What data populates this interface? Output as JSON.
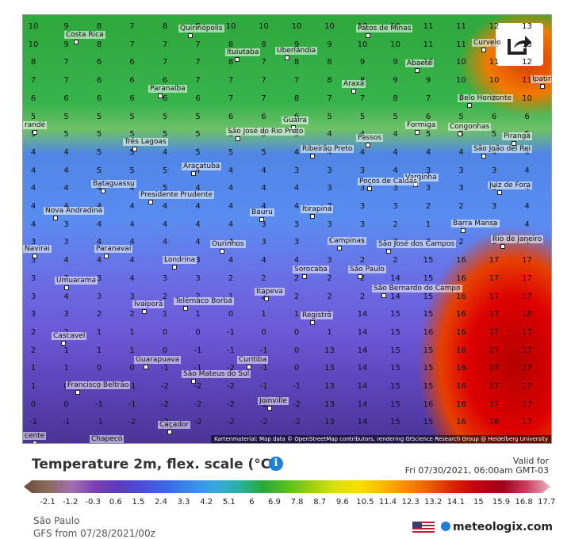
{
  "map": {
    "attribution": "Kartenmaterial: Map data © OpenStreetMap contributors, rendering GIScience Research Group @ Heidelberg University",
    "cities": [
      {
        "name": "Costa Rica"
      },
      {
        "name": "Quirinópolis"
      },
      {
        "name": "Patos de Minas"
      },
      {
        "name": "Curvelo"
      },
      {
        "name": "Ituiutaba"
      },
      {
        "name": "Uberlândia"
      },
      {
        "name": "Abaeté"
      },
      {
        "name": "Ipatinga"
      },
      {
        "name": "Paranaíba"
      },
      {
        "name": "Araxá"
      },
      {
        "name": "Belo Horizonte"
      },
      {
        "name": "Guaíra"
      },
      {
        "name": "Formiga"
      },
      {
        "name": "Congonhas"
      },
      {
        "name": "Três Lagoas"
      },
      {
        "name": "São José do Rio Preto"
      },
      {
        "name": "Ribeirão Preto"
      },
      {
        "name": "Passos"
      },
      {
        "name": "São João del Rei"
      },
      {
        "name": "Piranga"
      },
      {
        "name": "Araçatuba"
      },
      {
        "name": "Varginha"
      },
      {
        "name": "Poços de Caldas"
      },
      {
        "name": "Juiz de Fora"
      },
      {
        "name": "Bataguassu"
      },
      {
        "name": "Presidente Prudente"
      },
      {
        "name": "Bauru"
      },
      {
        "name": "Itirapina"
      },
      {
        "name": "Nova Andradina"
      },
      {
        "name": "Barra Mansa"
      },
      {
        "name": "Campinas"
      },
      {
        "name": "Rio de Janeiro"
      },
      {
        "name": "Navirai"
      },
      {
        "name": "Paranavaí"
      },
      {
        "name": "Ourinhos"
      },
      {
        "name": "São José dos Campos"
      },
      {
        "name": "Londrina"
      },
      {
        "name": "Sorocaba"
      },
      {
        "name": "São Paulo"
      },
      {
        "name": "Umuarama"
      },
      {
        "name": "Itapeva"
      },
      {
        "name": "São Bernardo do Campo"
      },
      {
        "name": "Telêmaco Borba"
      },
      {
        "name": "Ivaiporã"
      },
      {
        "name": "Registro"
      },
      {
        "name": "Cascavel"
      },
      {
        "name": "Guarapuava"
      },
      {
        "name": "Curitiba"
      },
      {
        "name": "São Mateus do Sul"
      },
      {
        "name": "Francisco Beltrão"
      },
      {
        "name": "Joinville"
      },
      {
        "name": "Caçador"
      },
      {
        "name": "Chapecó"
      },
      {
        "name": "cente"
      },
      {
        "name": "randé"
      }
    ],
    "grid_rows": [
      "10 9 8 7 8 8 10 10 10 10 10 10 11 11 12 13",
      "10 9 8 7 7 7 8 8 9 9 10 10 11 11 12 13",
      "8 7 6 6 7 7 8 7 8 8 9 9 10 10 11 12",
      "7 7 6 6 6 7 7 7 7 8 8 9 9 10 10 11",
      "6 6 6 6 6 6 7 7 8 7 7 8 7 8 9 10",
      "5 5 5 5 5 5 6 6 6 5 5 5 6 5 6 6",
      "5 5 5 5 5 5 5 5 5 4 4 4 5 5 5 5",
      "4 4 5 5 4 5 5 5 4 4 4 4 4 4 4 4",
      "4 4 5 5 5 4 4 4 3 3 3 4 3 3 3 4",
      "4 4 4 4 5 4 4 4 4 3 3 3 3 3 3 4",
      "4 4 4 4 4 4 4 4 4 3 3 3 2 2 3 4",
      "4 3 4 4 4 4 4 3 3 3 3 2 1 1 2 4",
      "3 3 4 4 4 4 4 3 3 3 3 3 2 2 3 4",
      "3 4 4 4 3 3 4 4 4 3 2 2 15 16 17 17",
      "3 3 3 4 3 3 2 2 2 2 2 14 15 16 17 17",
      "3 4 3 3 2 2 1 2 2 2 2 14 15 16 17 17",
      "3 3 2 2 1 1 0 1 1 1 14 15 15 16 17 18",
      "2 2 1 1 0 0 -1 0 0 1 14 15 16 16 17 17",
      "2 1 1 1 0 -1 -1 -1 0 13 14 15 15 16 17 17",
      "1 1 0 0 -1 -1 -2 -1 0 13 14 15 15 16 17 17",
      "1 0 0 -1 -2 -2 -2 -1 -1 13 14 15 15 16 17 17",
      "0 0 -1 -1 -2 -2 -2 -2 -2 13 14 15 16 16 17 17",
      "-1 -1 -1 -2 -2 -2 -2 -2 -2 13 14 15 15 16 16 17"
    ]
  },
  "legend": {
    "title": "Temperature 2m, flex. scale (°C)",
    "valid_for_label": "Valid for",
    "valid_time": "Fri 07/30/2021, 06:00am GMT-03",
    "ticks": [
      "-2.1",
      "-1.2",
      "-0.3",
      "0.6",
      "1.5",
      "2.4",
      "3.3",
      "4.2",
      "5.1",
      "6",
      "6.9",
      "7.8",
      "8.7",
      "9.6",
      "10.5",
      "11.4",
      "12.3",
      "13.2",
      "14.1",
      "15",
      "15.9",
      "16.8",
      "17.7"
    ],
    "colors": [
      "#6b4a3a",
      "#8a6a5a",
      "#a06fb0",
      "#7a3fb0",
      "#5a3bc0",
      "#4a4fd8",
      "#3a6ae8",
      "#3a8ae8",
      "#3aa8e0",
      "#2ab0a0",
      "#2aa838",
      "#55c020",
      "#9ad010",
      "#d8e010",
      "#f8e000",
      "#f8b800",
      "#f88a00",
      "#e85a00",
      "#d82000",
      "#c00010",
      "#a00018",
      "#c84060",
      "#f0b0c0"
    ]
  },
  "footer": {
    "region": "São Paulo",
    "model": "GFS from 07/28/2021/00z",
    "brand": "meteologix.com"
  },
  "icons": {
    "share": "share-icon",
    "info": "info-icon",
    "flag": "us-flag-icon",
    "brand_logo": "meteologix-logo-icon"
  }
}
